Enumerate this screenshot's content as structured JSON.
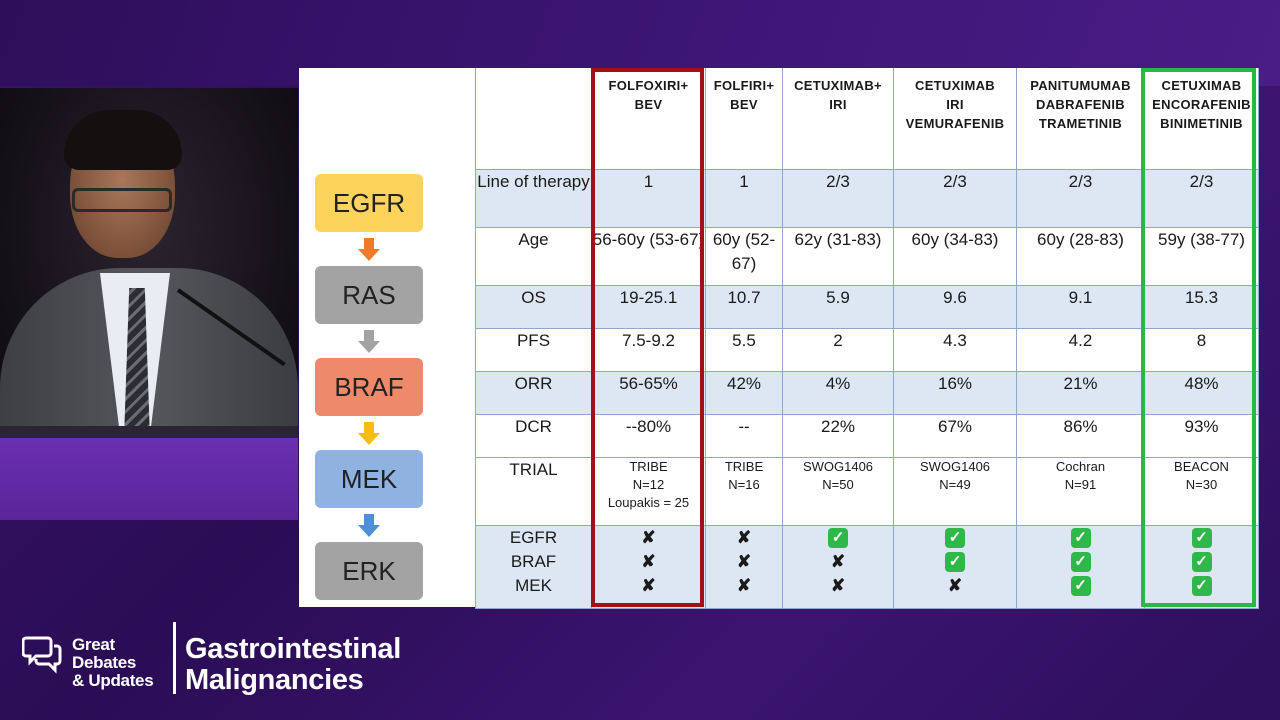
{
  "pathway": {
    "nodes": [
      {
        "label": "EGFR",
        "color": "#fdd35c"
      },
      {
        "label": "RAS",
        "color": "#a3a3a3"
      },
      {
        "label": "BRAF",
        "color": "#ee8a6a"
      },
      {
        "label": "MEK",
        "color": "#8fb2e0"
      },
      {
        "label": "ERK",
        "color": "#a3a3a3"
      }
    ],
    "arrow_colors": [
      "#ef7a2a",
      "#a3a3a3",
      "#f5bd16",
      "#4f8fd6"
    ]
  },
  "table": {
    "headers": [
      {
        "line1": "FOLFOXIRI+",
        "line2": "BEV",
        "line3": ""
      },
      {
        "line1": "FOLFIRI+",
        "line2": "BEV",
        "line3": ""
      },
      {
        "line1": "CETUXIMAB+",
        "line2": "IRI",
        "line3": ""
      },
      {
        "line1": "CETUXIMAB",
        "line2": "IRI",
        "line3": "VEMURAFENIB"
      },
      {
        "line1": "PANITUMUMAB",
        "line2": "DABRAFENIB",
        "line3": "TRAMETINIB"
      },
      {
        "line1": "CETUXIMAB",
        "line2": "ENCORAFENIB",
        "line3": "BINIMETINIB"
      }
    ],
    "rows": [
      {
        "label": "Line of therapy",
        "values": [
          "1",
          "1",
          "2/3",
          "2/3",
          "2/3",
          "2/3"
        ]
      },
      {
        "label": "Age",
        "values": [
          "56-60y (53-67)",
          "60y (52-67)",
          "62y (31-83)",
          "60y (34-83)",
          "60y (28-83)",
          "59y (38-77)"
        ]
      },
      {
        "label": "OS",
        "values": [
          "19-25.1",
          "10.7",
          "5.9",
          "9.6",
          "9.1",
          "15.3"
        ]
      },
      {
        "label": "PFS",
        "values": [
          "7.5-9.2",
          "5.5",
          "2",
          "4.3",
          "4.2",
          "8"
        ]
      },
      {
        "label": "ORR",
        "values": [
          "56-65%",
          "42%",
          "4%",
          "16%",
          "21%",
          "48%"
        ]
      },
      {
        "label": "DCR",
        "values": [
          "--80%",
          "--",
          "22%",
          "67%",
          "86%",
          "93%"
        ]
      }
    ],
    "trial": {
      "label": "TRIAL",
      "values": [
        {
          "l1": "TRIBE",
          "l2": "N=12",
          "l3": "Loupakis = 25"
        },
        {
          "l1": "TRIBE",
          "l2": "N=16",
          "l3": ""
        },
        {
          "l1": "SWOG1406",
          "l2": "N=50",
          "l3": ""
        },
        {
          "l1": "SWOG1406",
          "l2": "N=49",
          "l3": ""
        },
        {
          "l1": "Cochran",
          "l2": "N=91",
          "l3": ""
        },
        {
          "l1": "BEACON",
          "l2": "N=30",
          "l3": ""
        }
      ]
    },
    "targets": {
      "labels": [
        "EGFR",
        "BRAF",
        "MEK"
      ],
      "cross_glyph": "✘",
      "check_glyph": "✓",
      "columns": [
        [
          "✘",
          "✘",
          "✘"
        ],
        [
          "✘",
          "✘",
          "✘"
        ],
        [
          "✓",
          "✘",
          "✘"
        ],
        [
          "✓",
          "✓",
          "✘"
        ],
        [
          "✓",
          "✓",
          "✓"
        ],
        [
          "✓",
          "✓",
          "✓"
        ]
      ]
    },
    "highlight_colors": {
      "red": "#a21116",
      "green": "#27b84a"
    }
  },
  "branding": {
    "brand_line1": "Great",
    "brand_line2": "Debates",
    "brand_line3": "& Updates",
    "title_line1": "Gastrointestinal",
    "title_line2": "Malignancies"
  }
}
